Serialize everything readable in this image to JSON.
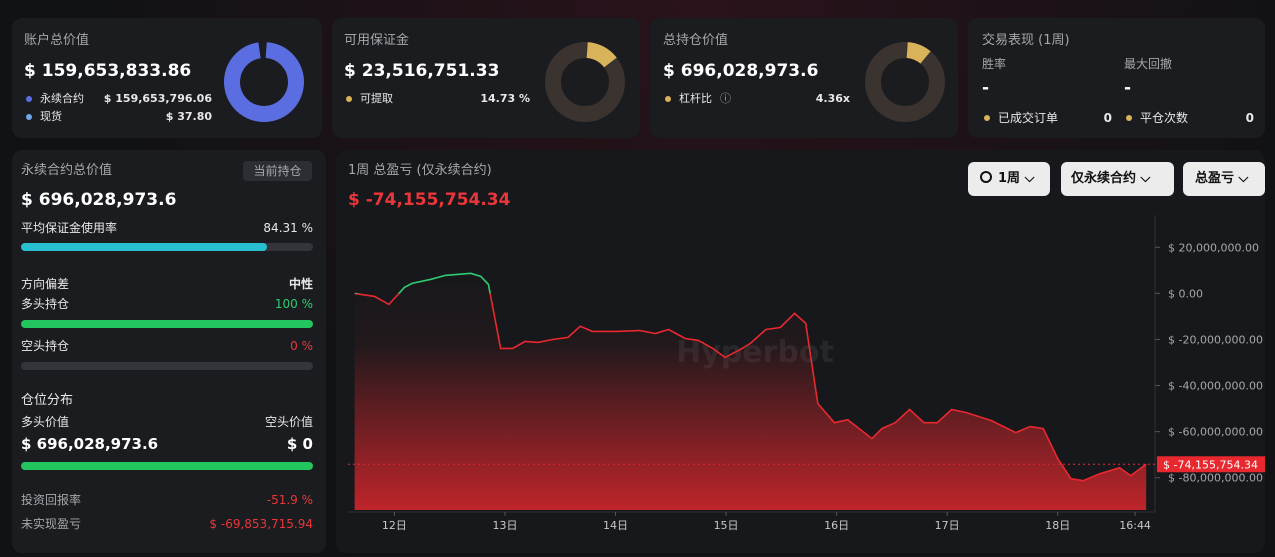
{
  "cards": [
    {
      "title": "账户总价值",
      "value": "$ 159,653,833.86",
      "items": [
        {
          "label": "永续合约",
          "value": "$ 159,653,796.06"
        },
        {
          "label": "现货",
          "value": "$ 37.80"
        }
      ]
    },
    {
      "title": "可用保证金",
      "value": "$ 23,516,751.33",
      "items": [
        {
          "label": "可提取",
          "value": "14.73 %"
        }
      ]
    },
    {
      "title": "总持仓价值",
      "value": "$ 696,028,973.6",
      "items": [
        {
          "label": "杠杆比",
          "value": "4.36x"
        }
      ]
    }
  ],
  "performance": {
    "title": "交易表现 (1周)",
    "stats": [
      {
        "label": "胜率",
        "value": "-"
      },
      {
        "label": "最大回撤",
        "value": "-"
      },
      {
        "label": "已成交订单",
        "value": "0"
      },
      {
        "label": "平仓次数",
        "value": "0"
      }
    ]
  },
  "positions": {
    "title": "永续合约总价值",
    "badge": "当前持仓",
    "value": "$ 696,028,973.6",
    "margin_usage": {
      "label": "平均保证金使用率",
      "value": "84.31 %"
    },
    "bias": {
      "label": "方向偏差",
      "value": "中性"
    },
    "long": {
      "label": "多头持仓",
      "value": "100 %"
    },
    "short": {
      "label": "空头持仓",
      "value": "0 %"
    },
    "distribution": {
      "title": "仓位分布",
      "long_label": "多头价值",
      "short_label": "空头价值",
      "long_value": "$ 696,028,973.6",
      "short_value": "$ 0"
    },
    "roi": {
      "label": "投资回报率",
      "value": "-51.9 %"
    },
    "unrealized": {
      "label": "未实现盈亏",
      "value": "$ -69,853,715.94"
    }
  },
  "controls": [
    "1周",
    "仅永续合约",
    "总盈亏"
  ],
  "watermark": "Hyperbot",
  "chart_data": {
    "type": "line",
    "title": "1周 总盈亏 (仅永续合约)",
    "subtitle": "$ -74,155,754.34",
    "x": [
      11.64,
      11.82,
      11.95,
      12.09,
      12.16,
      12.33,
      12.46,
      12.69,
      12.78,
      12.85,
      12.96,
      13.07,
      13.18,
      13.3,
      13.43,
      13.57,
      13.68,
      13.79,
      14.01,
      14.22,
      14.36,
      14.48,
      14.63,
      14.75,
      14.88,
      14.99,
      15.13,
      15.22,
      15.36,
      15.49,
      15.62,
      15.72,
      15.83,
      15.98,
      16.1,
      16.32,
      16.41,
      16.53,
      16.66,
      16.79,
      16.91,
      17.04,
      17.17,
      17.4,
      17.62,
      17.75,
      17.87,
      18.0,
      18.12,
      18.23,
      18.38,
      18.56,
      18.66,
      18.8
    ],
    "values": [
      0,
      -1300000,
      -4800000,
      2600000,
      4300000,
      6100000,
      7800000,
      8700000,
      7400000,
      3900000,
      -23900000,
      -23900000,
      -20900000,
      -21300000,
      -20000000,
      -19100000,
      -14300000,
      -16500000,
      -16500000,
      -16100000,
      -17400000,
      -15700000,
      -19600000,
      -20400000,
      -23900000,
      -27800000,
      -24300000,
      -21700000,
      -15700000,
      -14800000,
      -8700000,
      -13000000,
      -47800000,
      -56100000,
      -54800000,
      -63000000,
      -58700000,
      -56100000,
      -50400000,
      -56100000,
      -56100000,
      -50400000,
      -51700000,
      -55200000,
      -60400000,
      -57800000,
      -58700000,
      -71700000,
      -80400000,
      -81300000,
      -78300000,
      -75700000,
      -79100000,
      -74155754.34
    ],
    "color": "#e8282e",
    "positive_color": "#2ecc71",
    "xlim": [
      11.58,
      18.88
    ],
    "xticks": [
      {
        "value": 12,
        "label": "12日"
      },
      {
        "value": 13,
        "label": "13日"
      },
      {
        "value": 14,
        "label": "14日"
      },
      {
        "value": 15,
        "label": "15日"
      },
      {
        "value": 16,
        "label": "16日"
      },
      {
        "value": 17,
        "label": "17日"
      },
      {
        "value": 18,
        "label": "18日"
      },
      {
        "value": 18.7,
        "label": "16:44"
      }
    ],
    "ylim": [
      -94000000,
      34000000
    ],
    "yticks": [
      {
        "value": 20000000,
        "label": "$ 20,000,000.00"
      },
      {
        "value": 0,
        "label": "$ 0.00"
      },
      {
        "value": -20000000,
        "label": "$ -20,000,000.00"
      },
      {
        "value": -40000000,
        "label": "$ -40,000,000.00"
      },
      {
        "value": -60000000,
        "label": "$ -60,000,000.00"
      },
      {
        "value": -80000000,
        "label": "$ -80,000,000.00"
      }
    ],
    "grid": false
  }
}
